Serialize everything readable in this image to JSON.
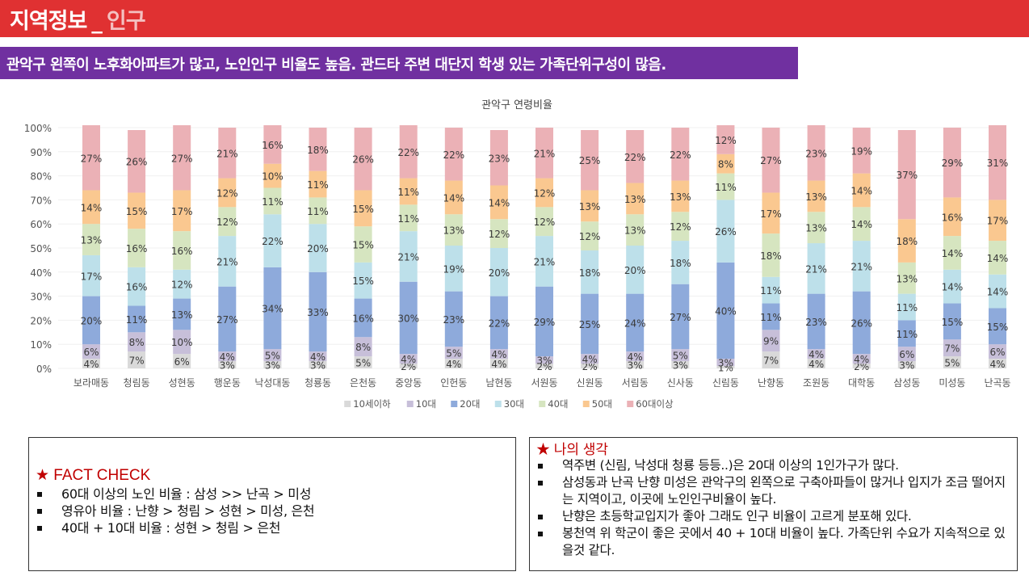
{
  "header": {
    "title_main": "지역정보",
    "title_sep": "_",
    "title_sub": "인구"
  },
  "banner": {
    "text": "관악구 왼쪽이 노후화아파트가 많고, 노인인구 비율도 높음. 관드타 주변 대단지 학생 있는 가족단위구성이 많음."
  },
  "chart_data": {
    "type": "bar",
    "stacked": true,
    "percent": true,
    "title": "관악구 연령비율",
    "categories": [
      "보라매동",
      "청림동",
      "성현동",
      "행운동",
      "낙성대동",
      "청룡동",
      "은천동",
      "중앙동",
      "인헌동",
      "남현동",
      "서원동",
      "신원동",
      "서림동",
      "신사동",
      "신림동",
      "난향동",
      "조원동",
      "대학동",
      "삼성동",
      "미성동",
      "난곡동"
    ],
    "yticks": [
      "0%",
      "10%",
      "20%",
      "30%",
      "40%",
      "50%",
      "60%",
      "70%",
      "80%",
      "90%",
      "100%"
    ],
    "ylim": [
      0,
      100
    ],
    "legend_position": "bottom",
    "series": [
      {
        "name": "10세이하",
        "color": "#d9d9d9",
        "labels": [
          "4%",
          "7%",
          "6%",
          "3%",
          "3%",
          "3%",
          "5%",
          "2%",
          "4%",
          "4%",
          "2%",
          "2%",
          "3%",
          "3%",
          "1%",
          "7%",
          "4%",
          "2%",
          "3%",
          "5%",
          "4%"
        ],
        "values": [
          4,
          7,
          6,
          3,
          3,
          3,
          5,
          2,
          4,
          4,
          2,
          2,
          3,
          3,
          1,
          7,
          4,
          2,
          3,
          5,
          4
        ]
      },
      {
        "name": "10대",
        "color": "#c7bfd9",
        "labels": [
          "6%",
          "8%",
          "10%",
          "4%",
          "5%",
          "4%",
          "8%",
          "4%",
          "5%",
          "4%",
          "3%",
          "4%",
          "4%",
          "5%",
          "3%",
          "9%",
          "4%",
          "4%",
          "6%",
          "7%",
          "6%"
        ],
        "values": [
          6,
          8,
          10,
          4,
          5,
          4,
          8,
          4,
          5,
          4,
          3,
          4,
          4,
          5,
          3,
          9,
          4,
          4,
          6,
          7,
          6
        ]
      },
      {
        "name": "20대",
        "color": "#8eaadb",
        "labels": [
          "20%",
          "11%",
          "13%",
          "27%",
          "34%",
          "33%",
          "16%",
          "30%",
          "23%",
          "22%",
          "29%",
          "25%",
          "24%",
          "27%",
          "40%",
          "11%",
          "23%",
          "26%",
          "11%",
          "15%",
          "15%"
        ],
        "values": [
          20,
          11,
          13,
          27,
          34,
          33,
          16,
          30,
          23,
          22,
          29,
          25,
          24,
          27,
          40,
          11,
          23,
          26,
          11,
          15,
          15
        ]
      },
      {
        "name": "30대",
        "color": "#bde0ea",
        "labels": [
          "17%",
          "16%",
          "12%",
          "21%",
          "22%",
          "20%",
          "15%",
          "21%",
          "19%",
          "20%",
          "21%",
          "18%",
          "20%",
          "18%",
          "26%",
          "11%",
          "21%",
          "21%",
          "11%",
          "14%",
          "14%"
        ],
        "values": [
          17,
          16,
          12,
          21,
          22,
          20,
          15,
          21,
          19,
          20,
          21,
          18,
          20,
          18,
          26,
          11,
          21,
          21,
          11,
          14,
          14
        ]
      },
      {
        "name": "40대",
        "color": "#d6e5c0",
        "labels": [
          "13%",
          "16%",
          "16%",
          "12%",
          "11%",
          "11%",
          "15%",
          "11%",
          "13%",
          "12%",
          "12%",
          "12%",
          "13%",
          "12%",
          "11%",
          "18%",
          "13%",
          "14%",
          "13%",
          "14%",
          "14%"
        ],
        "values": [
          13,
          16,
          16,
          12,
          11,
          11,
          15,
          11,
          13,
          12,
          12,
          12,
          13,
          12,
          11,
          18,
          13,
          14,
          13,
          14,
          14
        ]
      },
      {
        "name": "50대",
        "color": "#fac890",
        "labels": [
          "14%",
          "15%",
          "17%",
          "12%",
          "10%",
          "11%",
          "15%",
          "11%",
          "14%",
          "14%",
          "12%",
          "13%",
          "13%",
          "13%",
          "8%",
          "17%",
          "13%",
          "14%",
          "18%",
          "16%",
          "17%"
        ],
        "values": [
          14,
          15,
          17,
          12,
          10,
          11,
          15,
          11,
          14,
          14,
          12,
          13,
          13,
          13,
          8,
          17,
          13,
          14,
          18,
          16,
          17
        ]
      },
      {
        "name": "60대이상",
        "color": "#ebb1b6",
        "labels": [
          "27%",
          "26%",
          "27%",
          "21%",
          "16%",
          "18%",
          "26%",
          "22%",
          "22%",
          "23%",
          "21%",
          "25%",
          "22%",
          "22%",
          "12%",
          "27%",
          "23%",
          "19%",
          "37%",
          "29%",
          "31%"
        ],
        "values": [
          27,
          26,
          27,
          21,
          16,
          18,
          26,
          22,
          22,
          23,
          21,
          25,
          22,
          22,
          12,
          27,
          23,
          19,
          37,
          29,
          31
        ]
      }
    ]
  },
  "fact_check": {
    "title": "★ FACT CHECK",
    "items": [
      "60대 이상의 노인 비율 : 삼성 >> 난곡 > 미성",
      "영유아 비율 : 난향 > 청림 > 성현 > 미성, 은천",
      "40대 + 10대 비율 : 성현 > 청림 > 은천"
    ]
  },
  "my_thoughts": {
    "title": "★ 나의 생각",
    "items": [
      "역주변 (신림, 낙성대 청룡 등등..)은 20대 이상의 1인가구가 많다.",
      "삼성동과 난곡 난향 미성은 관악구의 왼쪽으로 구축아파들이 많거나 입지가 조금 떨어지는 지역이고, 이곳에 노인인구비율이 높다.",
      "난향은 초등학교입지가 좋아 그래도 인구 비율이 고르게 분포해 있다.",
      "봉천역 위 학군이 좋은 곳에서 40 + 10대 비율이 높다. 가족단위 수요가 지속적으로 있을것 같다."
    ]
  }
}
